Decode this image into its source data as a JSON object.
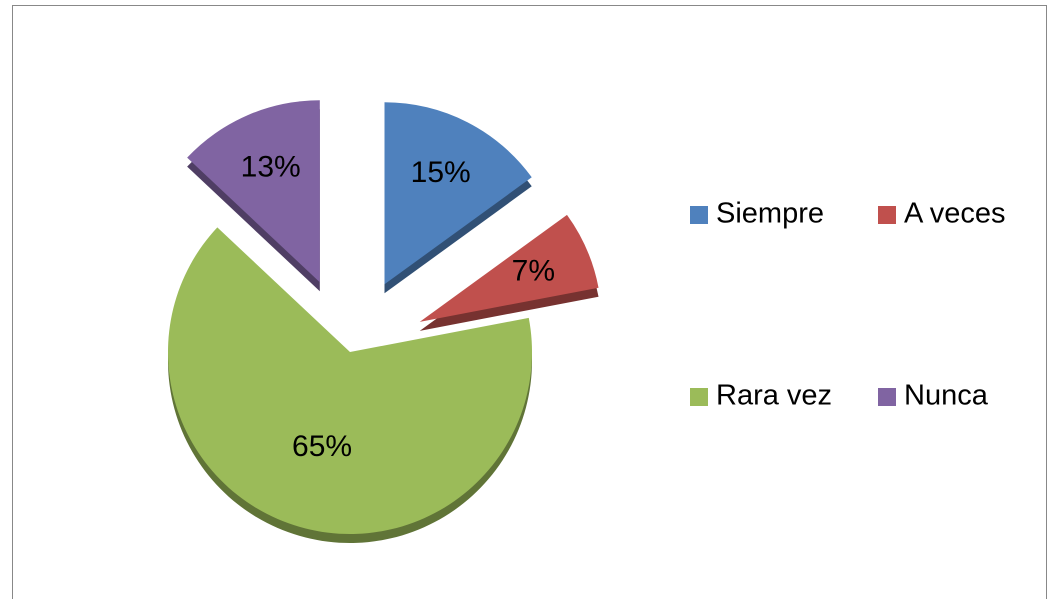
{
  "chart_data": {
    "type": "pie",
    "categories": [
      "Siempre",
      "A veces",
      "Rara vez",
      "Nunca"
    ],
    "values": [
      15,
      7,
      65,
      13
    ],
    "value_labels": [
      "15%",
      "7%",
      "65%",
      "13%"
    ],
    "colors": [
      "#4f81bd",
      "#c0504d",
      "#9bbb59",
      "#8064a2"
    ],
    "exploded": [
      true,
      true,
      false,
      true
    ],
    "legend": "right"
  }
}
